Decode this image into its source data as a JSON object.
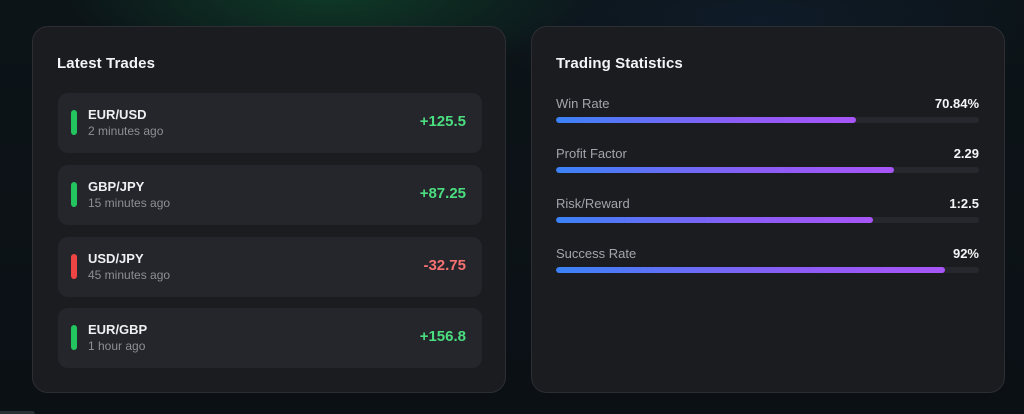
{
  "theme": {
    "positive_color": "#4ade80",
    "negative_color": "#f87171",
    "indicator_positive": "#22c55e",
    "indicator_negative": "#ef4444",
    "gradient_start": "#3b82f6",
    "gradient_end": "#a855f7"
  },
  "latest_trades": {
    "title": "Latest Trades",
    "items": [
      {
        "pair": "EUR/USD",
        "time": "2 minutes ago",
        "value": "+125.5",
        "direction": "positive"
      },
      {
        "pair": "GBP/JPY",
        "time": "15 minutes ago",
        "value": "+87.25",
        "direction": "positive"
      },
      {
        "pair": "USD/JPY",
        "time": "45 minutes ago",
        "value": "-32.75",
        "direction": "negative"
      },
      {
        "pair": "EUR/GBP",
        "time": "1 hour ago",
        "value": "+156.8",
        "direction": "positive"
      }
    ]
  },
  "trading_statistics": {
    "title": "Trading Statistics",
    "items": [
      {
        "label": "Win Rate",
        "value": "70.84%",
        "progress": 70.84
      },
      {
        "label": "Profit Factor",
        "value": "2.29",
        "progress": 80
      },
      {
        "label": "Risk/Reward",
        "value": "1:2.5",
        "progress": 75
      },
      {
        "label": "Success Rate",
        "value": "92%",
        "progress": 92
      }
    ]
  }
}
